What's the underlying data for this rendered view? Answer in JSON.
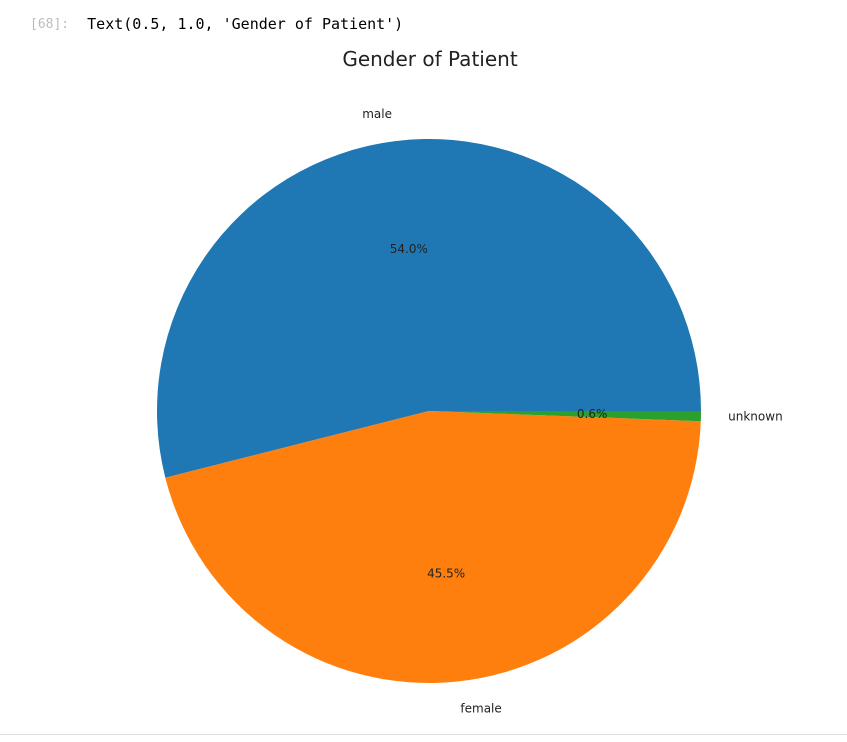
{
  "output": {
    "prompt": "[68]:",
    "text": "Text(0.5, 1.0, 'Gender of Patient')"
  },
  "chart_data": {
    "type": "pie",
    "title": "Gender of Patient",
    "labels": [
      "male",
      "female",
      "unknown"
    ],
    "values": [
      54.0,
      45.5,
      0.6
    ],
    "percent_labels": [
      "54.0%",
      "45.5%",
      "0.6%"
    ],
    "colors": [
      "#1f77b4",
      "#ff7f0e",
      "#2ca02c"
    ],
    "start_angle_deg": 0,
    "direction": "counterclockwise"
  }
}
